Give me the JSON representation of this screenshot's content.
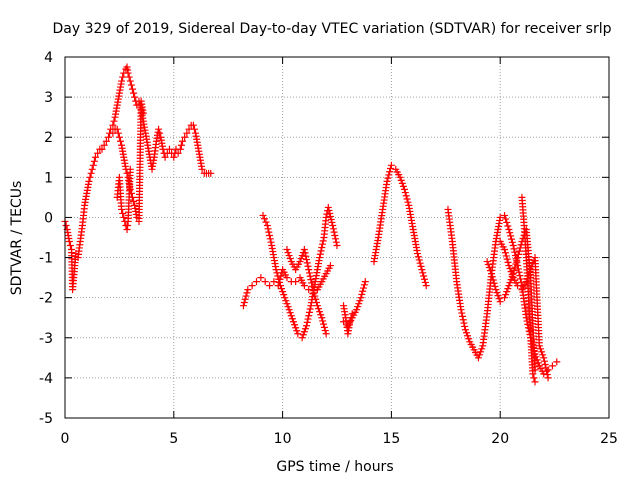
{
  "chart_data": {
    "type": "scatter",
    "title": "Day 329 of 2019, Sidereal Day-to-day VTEC variation (SDTVAR) for receiver srlp",
    "xlabel": "GPS time / hours",
    "ylabel": "SDTVAR / TECUs",
    "xlim": [
      0,
      25
    ],
    "ylim": [
      -5,
      4
    ],
    "xticks": [
      0,
      5,
      10,
      15,
      20,
      25
    ],
    "yticks": [
      -5,
      -4,
      -3,
      -2,
      -1,
      0,
      1,
      2,
      3,
      4
    ],
    "grid": true,
    "marker": "+",
    "colors": {
      "series": "#ff0000",
      "grid": "#a0a0a0",
      "axis": "#000000"
    },
    "series": [
      {
        "name": "SDTVAR",
        "segments": [
          {
            "x": [
              0.0,
              0.1,
              0.2,
              0.3,
              0.35,
              0.45,
              0.5,
              0.6,
              0.7,
              0.8,
              0.9,
              1.0,
              1.1,
              1.2,
              1.3,
              1.4,
              1.5,
              1.6,
              1.7,
              1.8,
              1.9,
              2.0,
              2.1,
              2.2,
              2.3,
              2.4,
              2.5,
              2.6,
              2.7,
              2.8,
              2.85,
              2.9,
              3.0,
              3.1,
              3.2,
              3.3,
              3.4,
              3.5,
              3.6,
              3.7,
              3.8,
              3.9,
              4.0,
              4.1,
              4.2,
              4.3,
              4.4,
              4.5,
              4.6,
              4.7,
              4.8,
              4.9,
              5.0,
              5.1,
              5.2,
              5.3,
              5.4,
              5.5,
              5.6,
              5.7,
              5.8,
              5.9,
              6.0,
              6.1,
              6.2,
              6.3,
              6.4,
              6.5,
              6.6,
              6.7
            ],
            "y": [
              -0.1,
              -0.3,
              -0.6,
              -0.8,
              -1.8,
              -1.2,
              -0.9,
              -1.0,
              -0.6,
              -0.2,
              0.3,
              0.6,
              0.9,
              1.1,
              1.3,
              1.5,
              1.6,
              1.7,
              1.7,
              1.8,
              1.9,
              2.0,
              2.2,
              2.3,
              2.5,
              2.8,
              3.1,
              3.4,
              3.6,
              3.7,
              3.75,
              3.6,
              3.4,
              3.2,
              3.0,
              2.8,
              2.9,
              2.7,
              2.4,
              2.1,
              1.8,
              1.5,
              1.2,
              1.5,
              1.9,
              2.2,
              2.0,
              1.7,
              1.5,
              1.6,
              1.7,
              1.6,
              1.5,
              1.7,
              1.6,
              1.7,
              1.9,
              2.0,
              2.1,
              2.2,
              2.3,
              2.3,
              2.1,
              1.8,
              1.5,
              1.2,
              1.1,
              1.1,
              1.1,
              1.1
            ]
          },
          {
            "x": [
              2.2,
              2.3,
              2.4,
              2.5,
              2.6,
              2.7,
              2.8,
              2.9,
              3.0,
              3.1,
              3.2,
              3.3,
              3.4,
              3.5,
              3.6
            ],
            "y": [
              2.1,
              2.2,
              2.2,
              2.0,
              1.8,
              1.5,
              1.2,
              1.0,
              0.7,
              0.5,
              0.3,
              0.0,
              -0.1,
              2.9,
              2.6
            ]
          },
          {
            "x": [
              2.4,
              2.5,
              2.6,
              2.7,
              2.8,
              2.85,
              2.9,
              3.0
            ],
            "y": [
              0.5,
              1.0,
              0.2,
              0.0,
              -0.2,
              -0.3,
              -0.1,
              1.2
            ]
          },
          {
            "x": [
              8.2,
              8.4,
              8.6,
              8.8,
              9.0,
              9.2,
              9.4,
              9.6,
              9.8,
              10.0,
              10.2,
              10.4,
              10.6,
              10.8,
              11.0,
              11.2,
              11.4,
              11.6,
              11.8,
              12.0,
              12.2
            ],
            "y": [
              -2.2,
              -1.8,
              -1.7,
              -1.6,
              -1.5,
              -1.6,
              -1.7,
              -1.6,
              -1.7,
              -1.3,
              -1.5,
              -1.6,
              -1.6,
              -1.5,
              -1.7,
              -1.8,
              -1.9,
              -1.8,
              -1.6,
              -1.4,
              -1.2
            ]
          },
          {
            "x": [
              9.1,
              9.3,
              9.5,
              9.7,
              9.9,
              10.1,
              10.3,
              10.5,
              10.7,
              10.9,
              11.1,
              11.3,
              11.5,
              11.7,
              11.9,
              12.0,
              12.1,
              12.3,
              12.5
            ],
            "y": [
              0.05,
              -0.2,
              -0.7,
              -1.3,
              -1.7,
              -2.0,
              -2.3,
              -2.6,
              -2.9,
              -3.0,
              -2.7,
              -2.2,
              -1.6,
              -1.0,
              -0.5,
              0.0,
              0.25,
              -0.2,
              -0.7
            ]
          },
          {
            "x": [
              10.2,
              10.4,
              10.6,
              10.8,
              11.0,
              11.2,
              11.4,
              11.6,
              11.8,
              12.0
            ],
            "y": [
              -0.8,
              -1.1,
              -1.3,
              -1.1,
              -0.8,
              -1.3,
              -1.8,
              -2.2,
              -2.5,
              -2.9
            ]
          },
          {
            "x": [
              12.8,
              13.0,
              13.2,
              13.4,
              13.6,
              13.8
            ],
            "y": [
              -2.6,
              -2.7,
              -2.5,
              -2.3,
              -2.0,
              -1.6
            ]
          },
          {
            "x": [
              12.8,
              12.9,
              13.0,
              13.1,
              13.2
            ],
            "y": [
              -2.2,
              -2.5,
              -2.9,
              -2.6,
              -2.4
            ]
          },
          {
            "x": [
              14.2,
              14.4,
              14.6,
              14.8,
              15.0,
              15.2,
              15.4,
              15.6,
              15.8,
              16.0,
              16.2,
              16.4,
              16.6
            ],
            "y": [
              -1.1,
              -0.5,
              0.2,
              0.9,
              1.3,
              1.2,
              1.0,
              0.7,
              0.3,
              -0.3,
              -0.9,
              -1.3,
              -1.7
            ]
          },
          {
            "x": [
              17.6,
              17.8,
              18.0,
              18.2,
              18.4,
              18.6,
              18.8,
              19.0,
              19.2,
              19.4,
              19.6,
              19.8,
              20.0,
              20.2,
              20.4,
              20.6,
              20.8,
              21.0,
              21.2,
              21.4,
              21.6,
              21.8,
              22.0,
              22.2,
              22.4,
              22.6
            ],
            "y": [
              0.2,
              -0.6,
              -1.6,
              -2.3,
              -2.8,
              -3.1,
              -3.3,
              -3.5,
              -3.2,
              -2.4,
              -1.4,
              -0.6,
              0.0,
              0.05,
              -0.3,
              -0.7,
              -1.2,
              -1.7,
              -2.5,
              -3.0,
              -3.4,
              -3.7,
              -3.9,
              -3.8,
              -3.7,
              -3.6
            ]
          },
          {
            "x": [
              19.4,
              19.6,
              19.8,
              20.0,
              20.2,
              20.4,
              20.6,
              20.8,
              21.0,
              21.2,
              21.4,
              21.6
            ],
            "y": [
              -1.1,
              -1.4,
              -1.8,
              -2.1,
              -2.0,
              -1.7,
              -1.4,
              -1.0,
              -0.6,
              -0.3,
              -1.5,
              -3.8
            ]
          },
          {
            "x": [
              20.0,
              20.2,
              20.4,
              20.6,
              20.8,
              21.0,
              21.2,
              21.4,
              21.6,
              21.8,
              22.0,
              22.2
            ],
            "y": [
              -0.6,
              -0.8,
              -1.2,
              -1.5,
              -1.7,
              -1.8,
              -1.6,
              -1.3,
              -1.0,
              -3.2,
              -3.5,
              -4.0
            ]
          },
          {
            "x": [
              21.0,
              21.1,
              21.2,
              21.3,
              21.4,
              21.5,
              21.6
            ],
            "y": [
              0.5,
              -0.2,
              -1.0,
              -2.0,
              -3.0,
              -3.9,
              -4.1
            ]
          }
        ]
      }
    ]
  }
}
